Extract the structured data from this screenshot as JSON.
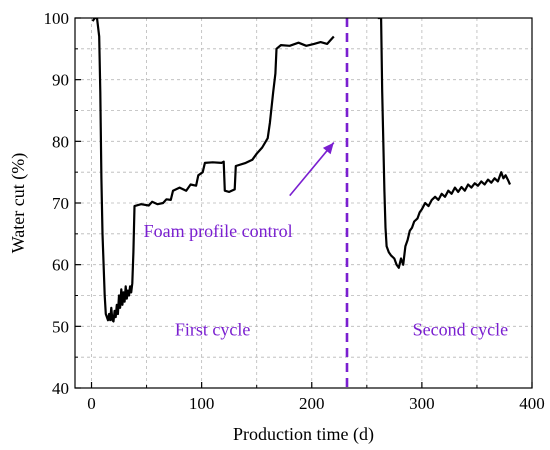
{
  "chart_data": {
    "type": "line",
    "xlabel": "Production time (d)",
    "ylabel": "Water cut (%)",
    "xlim": [
      -15,
      400
    ],
    "ylim": [
      40,
      100
    ],
    "xticks": [
      0,
      100,
      200,
      300,
      400
    ],
    "yticks": [
      40,
      50,
      60,
      70,
      80,
      90,
      100
    ],
    "grid": true,
    "series": [
      {
        "values": [
          [
            1,
            99.5
          ],
          [
            3,
            100
          ],
          [
            5,
            100
          ],
          [
            7,
            97
          ],
          [
            8,
            88
          ],
          [
            9,
            74
          ],
          [
            10,
            65
          ],
          [
            11,
            60
          ],
          [
            12,
            55
          ],
          [
            13,
            52
          ],
          [
            14,
            51.5
          ],
          [
            15,
            51
          ],
          [
            16,
            52
          ],
          [
            17,
            51
          ],
          [
            18,
            53
          ],
          [
            19,
            51
          ],
          [
            20,
            50.8
          ],
          [
            21,
            52.5
          ],
          [
            22,
            51.5
          ],
          [
            23,
            53.5
          ],
          [
            24,
            52
          ],
          [
            25,
            55
          ],
          [
            26,
            53
          ],
          [
            27,
            56
          ],
          [
            28,
            53.5
          ],
          [
            29,
            55.5
          ],
          [
            30,
            54
          ],
          [
            31,
            56.5
          ],
          [
            32,
            54.5
          ],
          [
            33,
            55.8
          ],
          [
            34,
            55
          ],
          [
            35,
            56.5
          ],
          [
            36,
            55.5
          ],
          [
            37,
            57
          ],
          [
            38,
            62
          ],
          [
            39,
            69.5
          ],
          [
            45,
            69.8
          ],
          [
            52,
            69.6
          ],
          [
            55,
            70.2
          ],
          [
            60,
            69.8
          ],
          [
            65,
            70
          ],
          [
            68,
            70.6
          ],
          [
            72,
            70.5
          ],
          [
            74,
            72
          ],
          [
            80,
            72.5
          ],
          [
            86,
            72
          ],
          [
            90,
            73
          ],
          [
            95,
            72.8
          ],
          [
            97,
            74.5
          ],
          [
            101,
            75
          ],
          [
            103,
            76.5
          ],
          [
            110,
            76.6
          ],
          [
            118,
            76.5
          ],
          [
            120,
            76.7
          ],
          [
            121,
            72
          ],
          [
            125,
            71.8
          ],
          [
            130,
            72.2
          ],
          [
            131,
            76
          ],
          [
            140,
            76.5
          ],
          [
            146,
            77
          ],
          [
            150,
            78
          ],
          [
            155,
            79
          ],
          [
            160,
            80.5
          ],
          [
            162,
            83
          ],
          [
            165,
            88
          ],
          [
            167,
            91
          ],
          [
            168,
            95
          ],
          [
            172,
            95.6
          ],
          [
            180,
            95.5
          ],
          [
            188,
            96
          ],
          [
            195,
            95.5
          ],
          [
            202,
            95.8
          ],
          [
            208,
            96.1
          ],
          [
            214,
            95.8
          ],
          [
            216,
            96.2
          ],
          [
            220,
            97
          ]
        ]
      },
      {
        "values": [
          [
            260,
            100
          ],
          [
            261,
            100
          ],
          [
            263,
            100
          ],
          [
            264,
            88
          ],
          [
            265,
            80
          ],
          [
            266,
            72
          ],
          [
            267,
            66
          ],
          [
            268,
            63
          ],
          [
            270,
            62
          ],
          [
            272,
            61.5
          ],
          [
            275,
            61
          ],
          [
            277,
            60
          ],
          [
            279,
            59.5
          ],
          [
            281,
            61
          ],
          [
            283,
            60
          ],
          [
            285,
            63
          ],
          [
            287,
            64
          ],
          [
            289,
            65.5
          ],
          [
            291,
            66
          ],
          [
            293,
            67
          ],
          [
            296,
            67.5
          ],
          [
            298,
            68.5
          ],
          [
            300,
            69
          ],
          [
            303,
            70
          ],
          [
            306,
            69.5
          ],
          [
            309,
            70.5
          ],
          [
            312,
            71
          ],
          [
            315,
            70.5
          ],
          [
            318,
            71.5
          ],
          [
            321,
            71
          ],
          [
            324,
            72
          ],
          [
            327,
            71.5
          ],
          [
            330,
            72.5
          ],
          [
            333,
            71.8
          ],
          [
            336,
            72.6
          ],
          [
            339,
            72
          ],
          [
            342,
            73
          ],
          [
            345,
            72.5
          ],
          [
            348,
            73.2
          ],
          [
            351,
            72.8
          ],
          [
            354,
            73.5
          ],
          [
            357,
            73
          ],
          [
            360,
            73.8
          ],
          [
            363,
            73.3
          ],
          [
            366,
            74
          ],
          [
            369,
            73.5
          ],
          [
            372,
            75
          ],
          [
            374,
            74
          ],
          [
            376,
            74.5
          ],
          [
            378,
            73.8
          ],
          [
            380,
            73
          ]
        ]
      }
    ],
    "divider": {
      "x": 232,
      "color": "#7a1fd0",
      "style": "dashed"
    },
    "annotations": [
      {
        "text": "Foam profile control",
        "x": 115,
        "y": 64.5,
        "color": "#7a1fd0"
      },
      {
        "text": "First cycle",
        "x": 110,
        "y": 48.5,
        "color": "#7a1fd0"
      },
      {
        "text": "Second cycle",
        "x": 335,
        "y": 48.5,
        "color": "#7a1fd0"
      }
    ],
    "arrow": {
      "from": [
        180,
        71.2
      ],
      "to": [
        220,
        79.8
      ],
      "color": "#7a1fd0"
    }
  }
}
